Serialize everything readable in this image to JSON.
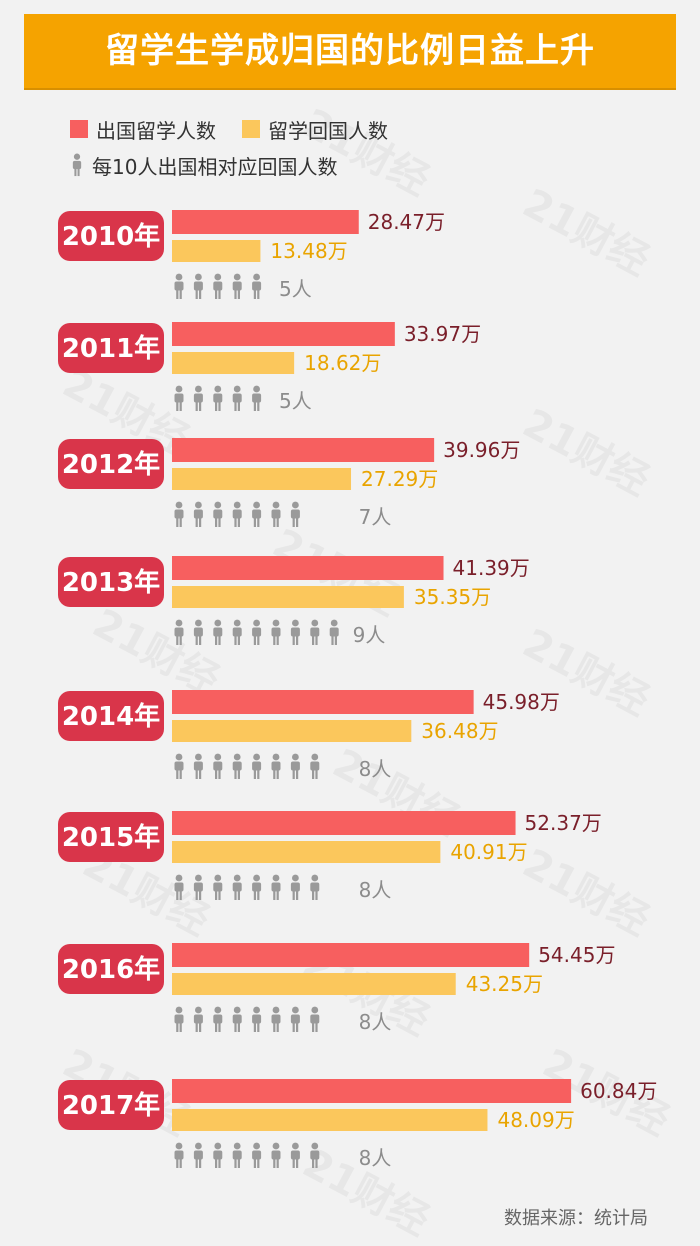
{
  "title": "留学生学成归国的比例日益上升",
  "legend": {
    "outbound": "出国留学人数",
    "returned": "留学回国人数",
    "ratio": "每10人出国相对应回国人数"
  },
  "source": "数据来源：统计局",
  "watermark": "21财经",
  "unit": "万",
  "colors": {
    "banner": "#f5a300",
    "outbound": "#f75f5f",
    "returned": "#fbc75c",
    "year_badge": "#d9354a",
    "outbound_label": "#7a1f2a",
    "returned_label": "#e9a400",
    "person": "#9a9a9a",
    "person_label": "#8c8c8c"
  },
  "chart_data": {
    "type": "bar",
    "categories": [
      "2010年",
      "2011年",
      "2012年",
      "2013年",
      "2014年",
      "2015年",
      "2016年",
      "2017年"
    ],
    "series": [
      {
        "name": "出国留学人数",
        "values": [
          28.47,
          33.97,
          39.96,
          41.39,
          45.98,
          52.37,
          54.45,
          60.84
        ]
      },
      {
        "name": "留学回国人数",
        "values": [
          13.48,
          18.62,
          27.29,
          35.35,
          36.48,
          40.91,
          43.25,
          48.09
        ]
      },
      {
        "name": "每10人出国相对应回国人数",
        "values": [
          5,
          5,
          7,
          9,
          8,
          8,
          8,
          8
        ]
      }
    ],
    "value_labels_outbound": [
      "28.47万",
      "33.97万",
      "39.96万",
      "41.39万",
      "45.98万",
      "52.37万",
      "54.45万",
      "60.84万"
    ],
    "value_labels_returned": [
      "13.48万",
      "18.62万",
      "27.29万",
      "35.35万",
      "36.48万",
      "40.91万",
      "43.25万",
      "48.09万"
    ],
    "person_labels": [
      "5人",
      "5人",
      "7人",
      "9人",
      "8人",
      "8人",
      "8人",
      "8人"
    ],
    "orientation": "horizontal",
    "grid": false
  }
}
